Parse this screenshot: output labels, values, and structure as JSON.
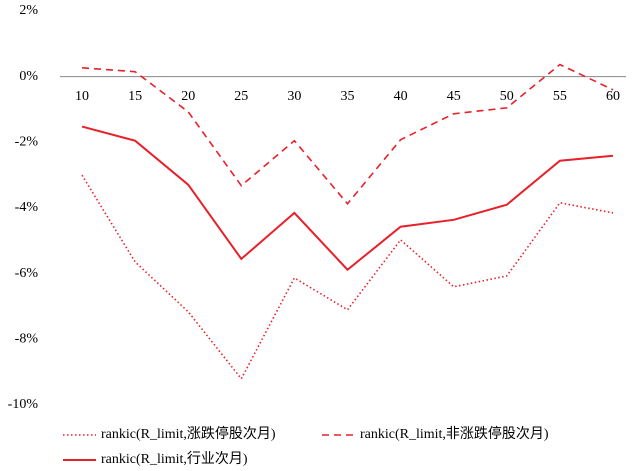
{
  "chart_data": {
    "type": "line",
    "categories": [
      10,
      15,
      20,
      25,
      30,
      35,
      40,
      45,
      50,
      55,
      60
    ],
    "ylim": [
      -10,
      2
    ],
    "yticks": [
      {
        "value": 2,
        "label": "2%"
      },
      {
        "value": 0,
        "label": "0%"
      },
      {
        "value": -2,
        "label": "-2%"
      },
      {
        "value": -4,
        "label": "-4%"
      },
      {
        "value": -6,
        "label": "-6%"
      },
      {
        "value": -8,
        "label": "-8%"
      },
      {
        "value": -10,
        "label": "-10%"
      }
    ],
    "series": [
      {
        "name": "rankic(R_limit,涨跌停股次月)",
        "color": "#e8202a",
        "style": "dotted",
        "values": [
          -3.0,
          -5.64,
          -7.16,
          -9.2,
          -6.13,
          -7.1,
          -4.97,
          -6.4,
          -6.07,
          -3.84,
          -4.15
        ]
      },
      {
        "name": "rankic(R_limit,非涨跌停股次月)",
        "color": "#e8202a",
        "style": "dashed",
        "values": [
          0.27,
          0.15,
          -1.07,
          -3.32,
          -1.95,
          -3.87,
          -1.92,
          -1.13,
          -0.95,
          0.37,
          -0.4
        ]
      },
      {
        "name": "rankic(R_limit,行业次月)",
        "color": "#e8202a",
        "style": "solid",
        "values": [
          -1.52,
          -1.95,
          -3.29,
          -5.55,
          -4.15,
          -5.88,
          -4.57,
          -4.36,
          -3.9,
          -2.56,
          -2.41
        ]
      }
    ]
  }
}
